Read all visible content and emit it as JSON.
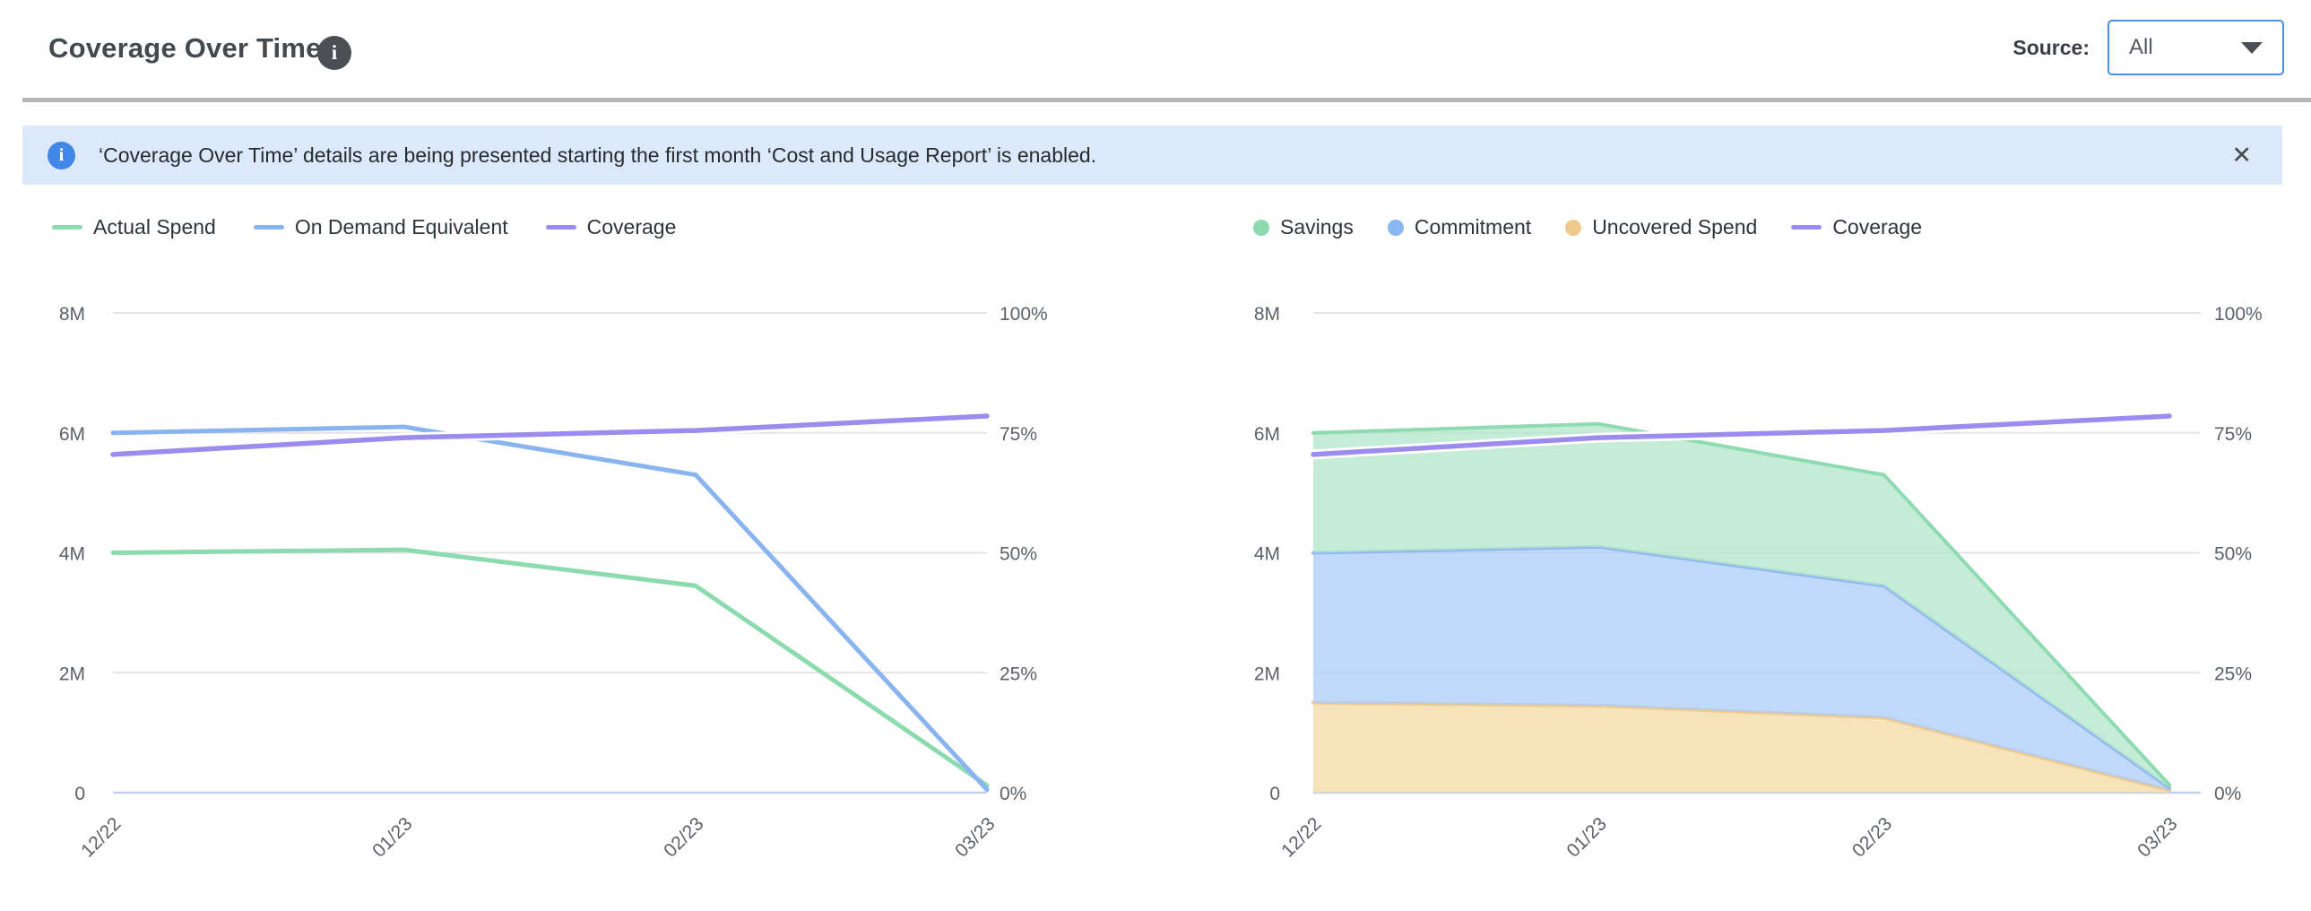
{
  "header": {
    "title": "Coverage Over Time",
    "source_label": "Source:",
    "source_value": "All"
  },
  "icons": {
    "info_glyph": "i",
    "close_glyph": "✕"
  },
  "banner": {
    "text": "‘Coverage Over Time’ details are being presented starting the first month ‘Cost and Usage Report’ is enabled."
  },
  "chart_data": [
    {
      "type": "line",
      "title": "",
      "xlabel": "",
      "ylabel": "",
      "categories": [
        "12/22",
        "01/23",
        "02/23",
        "03/23"
      ],
      "left_axis": {
        "ticks": [
          "8M",
          "6M",
          "4M",
          "2M",
          "0"
        ],
        "range": [
          0,
          8
        ],
        "unit": "M"
      },
      "right_axis": {
        "ticks": [
          "100%",
          "75%",
          "50%",
          "25%",
          "0%"
        ],
        "range": [
          0,
          100
        ],
        "unit": "%"
      },
      "grid": true,
      "legend_position": "top-left",
      "series": [
        {
          "name": "Actual Spend",
          "kind": "line",
          "axis": "left",
          "marker": "line",
          "color": "#8cdbae",
          "values": [
            4.0,
            4.05,
            3.45,
            0.12
          ]
        },
        {
          "name": "On Demand Equivalent",
          "kind": "line",
          "axis": "left",
          "marker": "line",
          "color": "#8ab4f0",
          "values": [
            6.0,
            6.1,
            5.3,
            0.05
          ]
        },
        {
          "name": "Coverage",
          "kind": "line",
          "axis": "right",
          "marker": "line",
          "color": "#9c8cf0",
          "halo": "#ffffff",
          "values": [
            70.5,
            74,
            75.5,
            78.5
          ]
        }
      ]
    },
    {
      "type": "area",
      "title": "",
      "xlabel": "",
      "ylabel": "",
      "categories": [
        "12/22",
        "01/23",
        "02/23",
        "03/23"
      ],
      "left_axis": {
        "ticks": [
          "8M",
          "6M",
          "4M",
          "2M",
          "0"
        ],
        "range": [
          0,
          8
        ],
        "unit": "M"
      },
      "right_axis": {
        "ticks": [
          "100%",
          "75%",
          "50%",
          "25%",
          "0%"
        ],
        "range": [
          0,
          100
        ],
        "unit": "%"
      },
      "grid": true,
      "legend_position": "top-left",
      "stack_bottom_up": [
        "Uncovered Spend",
        "Commitment",
        "Savings"
      ],
      "series": [
        {
          "name": "Savings",
          "kind": "area",
          "axis": "left",
          "marker": "dot",
          "fill": "#b5e7cb",
          "stroke": "#8edbb2",
          "legend_color": "#8cd9ae",
          "values": [
            2.0,
            2.05,
            1.85,
            0.05
          ]
        },
        {
          "name": "Commitment",
          "kind": "area",
          "axis": "left",
          "marker": "dot",
          "fill": "#aecdf7",
          "stroke": "#8fb7f2",
          "legend_color": "#88b7f4",
          "values": [
            2.5,
            2.65,
            2.2,
            0.04
          ]
        },
        {
          "name": "Uncovered Spend",
          "kind": "area",
          "axis": "left",
          "marker": "dot",
          "fill": "#f4dba6",
          "stroke": "#eec98e",
          "legend_color": "#f0c98c",
          "values": [
            1.5,
            1.45,
            1.25,
            0.04
          ]
        },
        {
          "name": "Coverage",
          "kind": "line",
          "axis": "right",
          "marker": "line",
          "color": "#9c8cf0",
          "halo": "#ffffff",
          "values": [
            70.5,
            74,
            75.5,
            78.5
          ]
        }
      ]
    }
  ]
}
